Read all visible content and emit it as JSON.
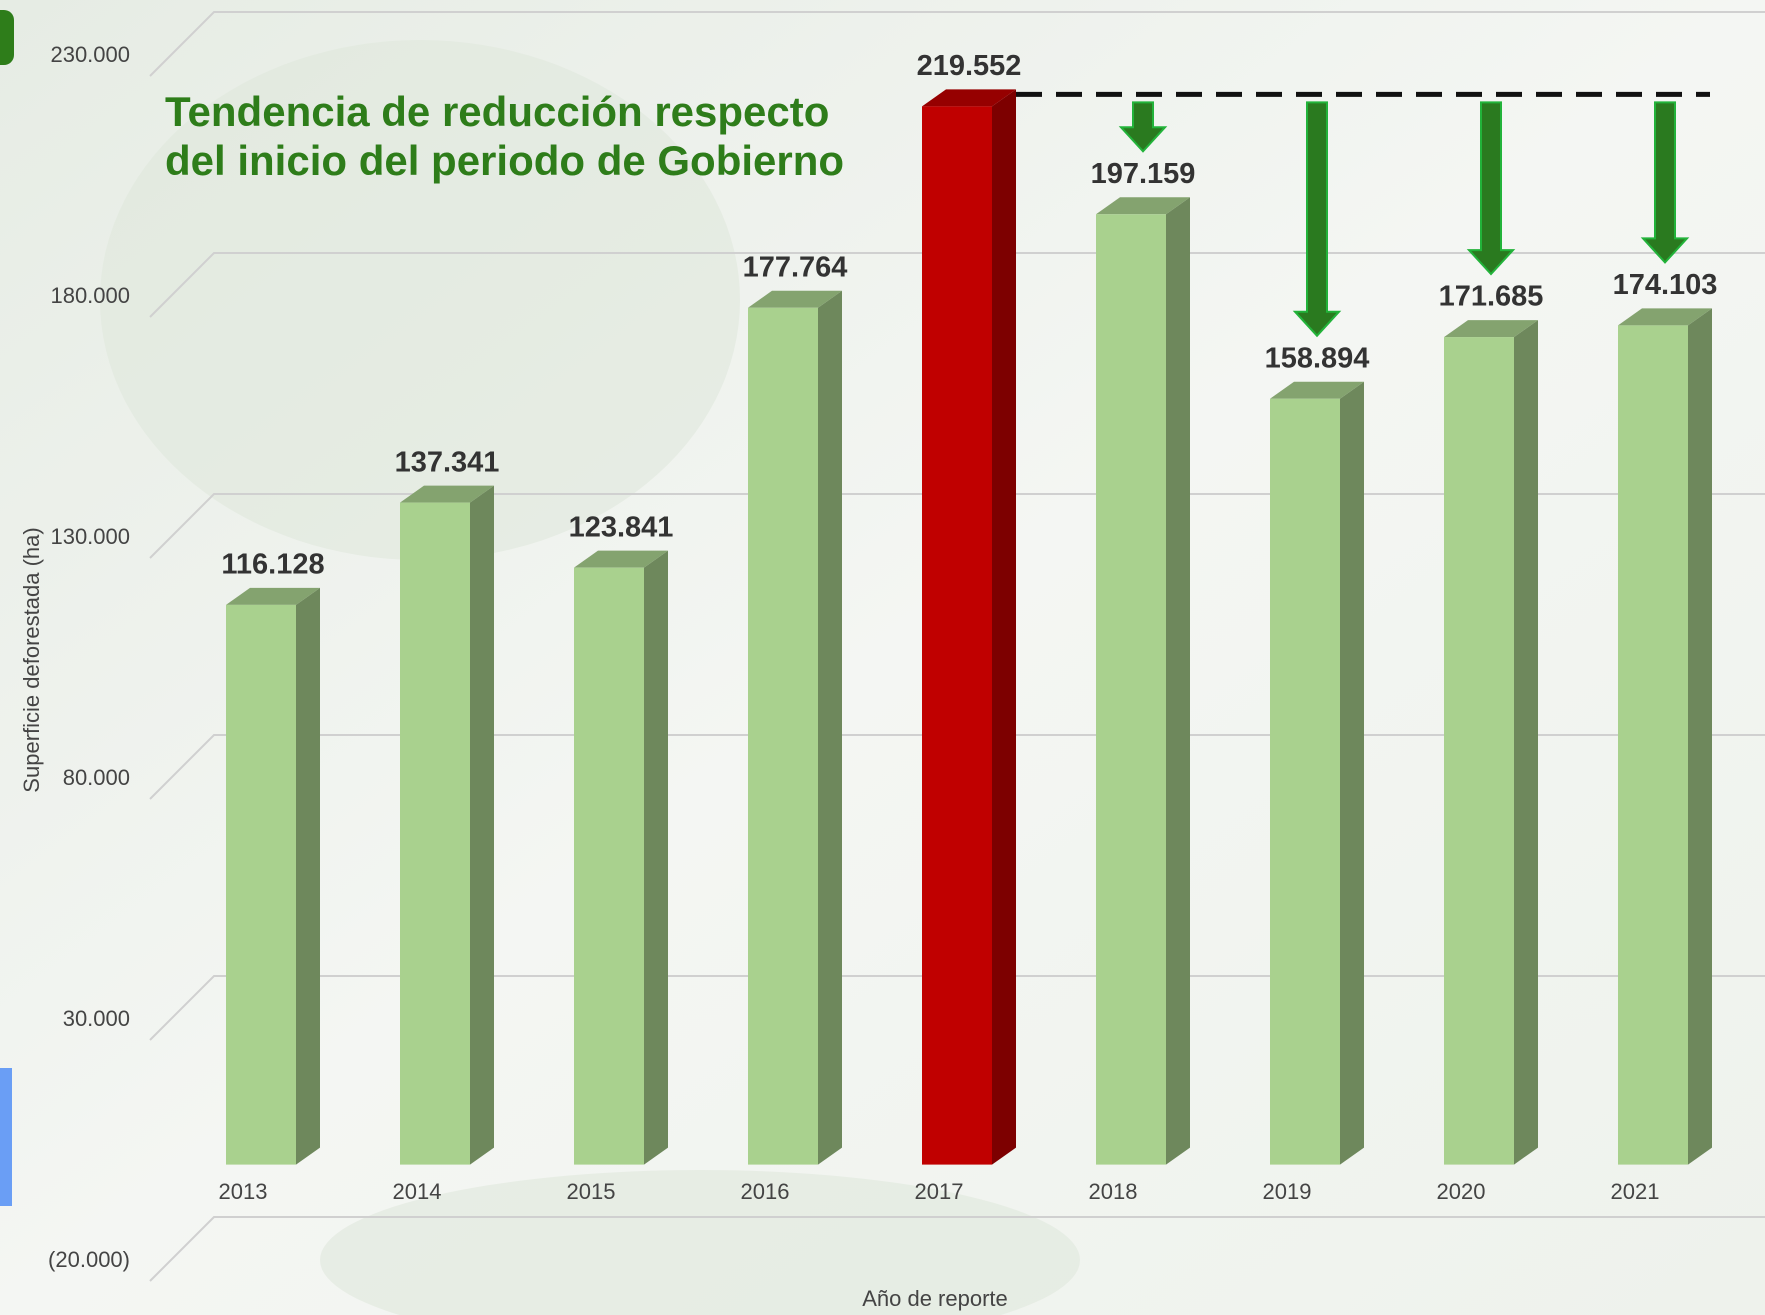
{
  "chart_data": {
    "type": "bar3d",
    "title": [
      "Tendencia de reducción respecto",
      "del inicio del periodo de Gobierno"
    ],
    "y_label": "Superficie deforestada (ha)",
    "x_label": "Año de reporte",
    "categories": [
      "2013",
      "2014",
      "2015",
      "2016",
      "2017",
      "2018",
      "2019",
      "2020",
      "2021"
    ],
    "values": [
      116128,
      137341,
      123841,
      177764,
      219552,
      197159,
      158894,
      171685,
      174103
    ],
    "value_labels": [
      "116.128",
      "137.341",
      "123.841",
      "177.764",
      "219.552",
      "197.159",
      "158.894",
      "171.685",
      "174.103"
    ],
    "colors": [
      "#a9d18e",
      "#a9d18e",
      "#a9d18e",
      "#a9d18e",
      "#c00000",
      "#a9d18e",
      "#a9d18e",
      "#a9d18e",
      "#a9d18e"
    ],
    "ylim": [
      -20000,
      230000
    ],
    "yticks": [
      {
        "value": -20000,
        "label": "(20.000)"
      },
      {
        "value": 30000,
        "label": "30.000"
      },
      {
        "value": 80000,
        "label": "80.000"
      },
      {
        "value": 130000,
        "label": "130.000"
      },
      {
        "value": 180000,
        "label": "180.000"
      },
      {
        "value": 230000,
        "label": "230.000"
      }
    ],
    "grid": true
  }
}
